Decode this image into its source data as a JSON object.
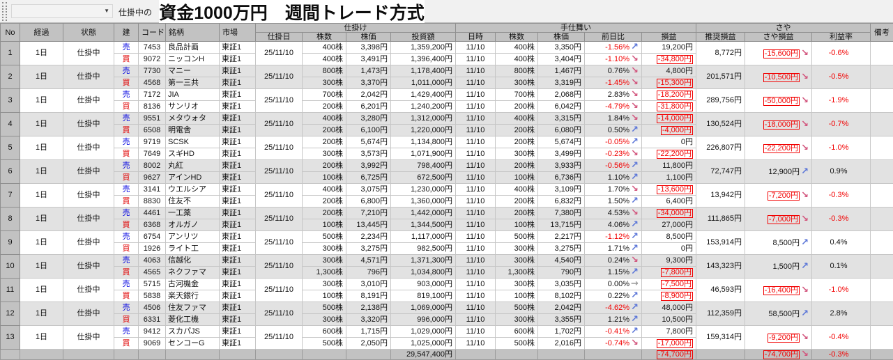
{
  "toolbar": {
    "dropdown_value": "",
    "filter_label": "仕掛中の",
    "title": "資金1000万円　週間トレード方式"
  },
  "colors": {
    "negative": "#f20000",
    "sell_blue": "#0000e0",
    "buy_red": "#e00000",
    "arrow_up": "#5b76d8",
    "arrow_down": "#d2557d",
    "arrow_flat": "#9a9a9a",
    "header_gray": "#c2c2c2",
    "row_even": "#e2e2e2"
  },
  "table": {
    "group_headers": {
      "entry": "仕掛け",
      "exit": "手仕舞い",
      "saya": "さや"
    },
    "col_headers": {
      "no": "No",
      "elapsed": "経過",
      "status": "状態",
      "side": "建",
      "code": "コード",
      "name": "銘柄",
      "market": "市場",
      "entry_date": "仕掛日",
      "shares": "株数",
      "price": "株価",
      "amount": "投資額",
      "exit_date": "日時",
      "exit_shares": "株数",
      "exit_price": "株価",
      "day_change": "前日比",
      "pnl": "損益",
      "rec_pnl": "推奨損益",
      "saya_pnl": "さや損益",
      "profit_rate": "利益率",
      "note": "備考"
    },
    "rows": [
      {
        "no": "1",
        "elapsed": "1日",
        "status": "仕掛中",
        "entry_date": "25/11/10",
        "legs": [
          {
            "side": "売",
            "code": "7453",
            "name": "良品計画",
            "market": "東証1",
            "shares": "400株",
            "price": "3,398円",
            "amount": "1,359,200円",
            "exit_date": "11/10",
            "exit_shares": "400株",
            "exit_price": "3,350円",
            "day_change": "-1.56%",
            "day_arrow": "up",
            "pnl": "19,200円"
          },
          {
            "side": "買",
            "code": "9072",
            "name": "ニッコンH",
            "market": "東証1",
            "shares": "400株",
            "price": "3,491円",
            "amount": "1,396,400円",
            "exit_date": "11/10",
            "exit_shares": "400株",
            "exit_price": "3,404円",
            "day_change": "-1.10%",
            "day_arrow": "down",
            "pnl": "-34,800円"
          }
        ],
        "rec_pnl": "8,772円",
        "saya_pnl": "-15,600円",
        "saya_arrow": "down",
        "profit_rate": "-0.6%",
        "note": ""
      },
      {
        "no": "2",
        "elapsed": "1日",
        "status": "仕掛中",
        "entry_date": "25/11/10",
        "legs": [
          {
            "side": "売",
            "code": "7730",
            "name": "マニー",
            "market": "東証1",
            "shares": "800株",
            "price": "1,473円",
            "amount": "1,178,400円",
            "exit_date": "11/10",
            "exit_shares": "800株",
            "exit_price": "1,467円",
            "day_change": "0.76%",
            "day_arrow": "down",
            "pnl": "4,800円"
          },
          {
            "side": "買",
            "code": "4568",
            "name": "第一三共",
            "market": "東証1",
            "shares": "300株",
            "price": "3,370円",
            "amount": "1,011,000円",
            "exit_date": "11/10",
            "exit_shares": "300株",
            "exit_price": "3,319円",
            "day_change": "-1.45%",
            "day_arrow": "down",
            "pnl": "-15,300円"
          }
        ],
        "rec_pnl": "201,571円",
        "saya_pnl": "-10,500円",
        "saya_arrow": "down",
        "profit_rate": "-0.5%",
        "note": ""
      },
      {
        "no": "3",
        "elapsed": "1日",
        "status": "仕掛中",
        "entry_date": "25/11/10",
        "legs": [
          {
            "side": "売",
            "code": "7172",
            "name": "JIA",
            "market": "東証1",
            "shares": "700株",
            "price": "2,042円",
            "amount": "1,429,400円",
            "exit_date": "11/10",
            "exit_shares": "700株",
            "exit_price": "2,068円",
            "day_change": "2.83%",
            "day_arrow": "down",
            "pnl": "-18,200円"
          },
          {
            "side": "買",
            "code": "8136",
            "name": "サンリオ",
            "market": "東証1",
            "shares": "200株",
            "price": "6,201円",
            "amount": "1,240,200円",
            "exit_date": "11/10",
            "exit_shares": "200株",
            "exit_price": "6,042円",
            "day_change": "-4.79%",
            "day_arrow": "down",
            "pnl": "-31,800円"
          }
        ],
        "rec_pnl": "289,756円",
        "saya_pnl": "-50,000円",
        "saya_arrow": "down",
        "profit_rate": "-1.9%",
        "note": ""
      },
      {
        "no": "4",
        "elapsed": "1日",
        "status": "仕掛中",
        "entry_date": "25/11/10",
        "legs": [
          {
            "side": "売",
            "code": "9551",
            "name": "メタウォタ",
            "market": "東証1",
            "shares": "400株",
            "price": "3,280円",
            "amount": "1,312,000円",
            "exit_date": "11/10",
            "exit_shares": "400株",
            "exit_price": "3,315円",
            "day_change": "1.84%",
            "day_arrow": "down",
            "pnl": "-14,000円"
          },
          {
            "side": "買",
            "code": "6508",
            "name": "明電舎",
            "market": "東証1",
            "shares": "200株",
            "price": "6,100円",
            "amount": "1,220,000円",
            "exit_date": "11/10",
            "exit_shares": "200株",
            "exit_price": "6,080円",
            "day_change": "0.50%",
            "day_arrow": "up",
            "pnl": "-4,000円"
          }
        ],
        "rec_pnl": "130,524円",
        "saya_pnl": "-18,000円",
        "saya_arrow": "down",
        "profit_rate": "-0.7%",
        "note": ""
      },
      {
        "no": "5",
        "elapsed": "1日",
        "status": "仕掛中",
        "entry_date": "25/11/10",
        "legs": [
          {
            "side": "売",
            "code": "9719",
            "name": "SCSK",
            "market": "東証1",
            "shares": "200株",
            "price": "5,674円",
            "amount": "1,134,800円",
            "exit_date": "11/10",
            "exit_shares": "200株",
            "exit_price": "5,674円",
            "day_change": "-0.05%",
            "day_arrow": "up",
            "pnl": "0円"
          },
          {
            "side": "買",
            "code": "7649",
            "name": "スギHD",
            "market": "東証1",
            "shares": "300株",
            "price": "3,573円",
            "amount": "1,071,900円",
            "exit_date": "11/10",
            "exit_shares": "300株",
            "exit_price": "3,499円",
            "day_change": "-0.23%",
            "day_arrow": "down",
            "pnl": "-22,200円"
          }
        ],
        "rec_pnl": "226,807円",
        "saya_pnl": "-22,200円",
        "saya_arrow": "down",
        "profit_rate": "-1.0%",
        "note": ""
      },
      {
        "no": "6",
        "elapsed": "1日",
        "status": "仕掛中",
        "entry_date": "25/11/10",
        "legs": [
          {
            "side": "売",
            "code": "8002",
            "name": "丸紅",
            "market": "東証1",
            "shares": "200株",
            "price": "3,992円",
            "amount": "798,400円",
            "exit_date": "11/10",
            "exit_shares": "200株",
            "exit_price": "3,933円",
            "day_change": "-0.56%",
            "day_arrow": "up",
            "pnl": "11,800円"
          },
          {
            "side": "買",
            "code": "9627",
            "name": "アインHD",
            "market": "東証1",
            "shares": "100株",
            "price": "6,725円",
            "amount": "672,500円",
            "exit_date": "11/10",
            "exit_shares": "100株",
            "exit_price": "6,736円",
            "day_change": "1.10%",
            "day_arrow": "up",
            "pnl": "1,100円"
          }
        ],
        "rec_pnl": "72,747円",
        "saya_pnl": "12,900円",
        "saya_arrow": "up",
        "profit_rate": "0.9%",
        "note": ""
      },
      {
        "no": "7",
        "elapsed": "1日",
        "status": "仕掛中",
        "entry_date": "25/11/10",
        "legs": [
          {
            "side": "売",
            "code": "3141",
            "name": "ウエルシア",
            "market": "東証1",
            "shares": "400株",
            "price": "3,075円",
            "amount": "1,230,000円",
            "exit_date": "11/10",
            "exit_shares": "400株",
            "exit_price": "3,109円",
            "day_change": "1.70%",
            "day_arrow": "down",
            "pnl": "-13,600円"
          },
          {
            "side": "買",
            "code": "8830",
            "name": "住友不",
            "market": "東証1",
            "shares": "200株",
            "price": "6,800円",
            "amount": "1,360,000円",
            "exit_date": "11/10",
            "exit_shares": "200株",
            "exit_price": "6,832円",
            "day_change": "1.50%",
            "day_arrow": "up",
            "pnl": "6,400円"
          }
        ],
        "rec_pnl": "13,942円",
        "saya_pnl": "-7,200円",
        "saya_arrow": "down",
        "profit_rate": "-0.3%",
        "note": ""
      },
      {
        "no": "8",
        "elapsed": "1日",
        "status": "仕掛中",
        "entry_date": "25/11/10",
        "legs": [
          {
            "side": "売",
            "code": "4461",
            "name": "一工薬",
            "market": "東証1",
            "shares": "200株",
            "price": "7,210円",
            "amount": "1,442,000円",
            "exit_date": "11/10",
            "exit_shares": "200株",
            "exit_price": "7,380円",
            "day_change": "4.53%",
            "day_arrow": "down",
            "pnl": "-34,000円"
          },
          {
            "side": "買",
            "code": "6368",
            "name": "オルガノ",
            "market": "東証1",
            "shares": "100株",
            "price": "13,445円",
            "amount": "1,344,500円",
            "exit_date": "11/10",
            "exit_shares": "100株",
            "exit_price": "13,715円",
            "day_change": "4.06%",
            "day_arrow": "up",
            "pnl": "27,000円"
          }
        ],
        "rec_pnl": "111,865円",
        "saya_pnl": "-7,000円",
        "saya_arrow": "down",
        "profit_rate": "-0.3%",
        "note": ""
      },
      {
        "no": "9",
        "elapsed": "1日",
        "status": "仕掛中",
        "entry_date": "25/11/10",
        "legs": [
          {
            "side": "売",
            "code": "6754",
            "name": "アンリツ",
            "market": "東証1",
            "shares": "500株",
            "price": "2,234円",
            "amount": "1,117,000円",
            "exit_date": "11/10",
            "exit_shares": "500株",
            "exit_price": "2,217円",
            "day_change": "-1.12%",
            "day_arrow": "up",
            "pnl": "8,500円"
          },
          {
            "side": "買",
            "code": "1926",
            "name": "ライト工",
            "market": "東証1",
            "shares": "300株",
            "price": "3,275円",
            "amount": "982,500円",
            "exit_date": "11/10",
            "exit_shares": "300株",
            "exit_price": "3,275円",
            "day_change": "1.71%",
            "day_arrow": "up",
            "pnl": "0円"
          }
        ],
        "rec_pnl": "153,914円",
        "saya_pnl": "8,500円",
        "saya_arrow": "up",
        "profit_rate": "0.4%",
        "note": ""
      },
      {
        "no": "10",
        "elapsed": "1日",
        "status": "仕掛中",
        "entry_date": "25/11/10",
        "legs": [
          {
            "side": "売",
            "code": "4063",
            "name": "信越化",
            "market": "東証1",
            "shares": "300株",
            "price": "4,571円",
            "amount": "1,371,300円",
            "exit_date": "11/10",
            "exit_shares": "300株",
            "exit_price": "4,540円",
            "day_change": "0.24%",
            "day_arrow": "down",
            "pnl": "9,300円"
          },
          {
            "side": "買",
            "code": "4565",
            "name": "ネクファマ",
            "market": "東証1",
            "shares": "1,300株",
            "price": "796円",
            "amount": "1,034,800円",
            "exit_date": "11/10",
            "exit_shares": "1,300株",
            "exit_price": "790円",
            "day_change": "1.15%",
            "day_arrow": "up",
            "pnl": "-7,800円"
          }
        ],
        "rec_pnl": "143,323円",
        "saya_pnl": "1,500円",
        "saya_arrow": "up",
        "profit_rate": "0.1%",
        "note": ""
      },
      {
        "no": "11",
        "elapsed": "1日",
        "status": "仕掛中",
        "entry_date": "25/11/10",
        "legs": [
          {
            "side": "売",
            "code": "5715",
            "name": "古河機金",
            "market": "東証1",
            "shares": "300株",
            "price": "3,010円",
            "amount": "903,000円",
            "exit_date": "11/10",
            "exit_shares": "300株",
            "exit_price": "3,035円",
            "day_change": "0.00%",
            "day_arrow": "flat",
            "pnl": "-7,500円"
          },
          {
            "side": "買",
            "code": "5838",
            "name": "楽天銀行",
            "market": "東証1",
            "shares": "100株",
            "price": "8,191円",
            "amount": "819,100円",
            "exit_date": "11/10",
            "exit_shares": "100株",
            "exit_price": "8,102円",
            "day_change": "0.22%",
            "day_arrow": "up",
            "pnl": "-8,900円"
          }
        ],
        "rec_pnl": "46,593円",
        "saya_pnl": "-16,400円",
        "saya_arrow": "down",
        "profit_rate": "-1.0%",
        "note": ""
      },
      {
        "no": "12",
        "elapsed": "1日",
        "status": "仕掛中",
        "entry_date": "25/11/10",
        "legs": [
          {
            "side": "売",
            "code": "4506",
            "name": "住友ファマ",
            "market": "東証1",
            "shares": "500株",
            "price": "2,138円",
            "amount": "1,069,000円",
            "exit_date": "11/10",
            "exit_shares": "500株",
            "exit_price": "2,042円",
            "day_change": "-4.62%",
            "day_arrow": "up",
            "pnl": "48,000円"
          },
          {
            "side": "買",
            "code": "6331",
            "name": "菱化工機",
            "market": "東証1",
            "shares": "300株",
            "price": "3,320円",
            "amount": "996,000円",
            "exit_date": "11/10",
            "exit_shares": "300株",
            "exit_price": "3,355円",
            "day_change": "1.21%",
            "day_arrow": "up",
            "pnl": "10,500円"
          }
        ],
        "rec_pnl": "112,359円",
        "saya_pnl": "58,500円",
        "saya_arrow": "up",
        "profit_rate": "2.8%",
        "note": ""
      },
      {
        "no": "13",
        "elapsed": "1日",
        "status": "仕掛中",
        "entry_date": "25/11/10",
        "legs": [
          {
            "side": "売",
            "code": "9412",
            "name": "スカパJS",
            "market": "東証1",
            "shares": "600株",
            "price": "1,715円",
            "amount": "1,029,000円",
            "exit_date": "11/10",
            "exit_shares": "600株",
            "exit_price": "1,702円",
            "day_change": "-0.41%",
            "day_arrow": "up",
            "pnl": "7,800円"
          },
          {
            "side": "買",
            "code": "9069",
            "name": "センコーG",
            "market": "東証1",
            "shares": "500株",
            "price": "2,050円",
            "amount": "1,025,000円",
            "exit_date": "11/10",
            "exit_shares": "500株",
            "exit_price": "2,016円",
            "day_change": "-0.74%",
            "day_arrow": "down",
            "pnl": "-17,000円"
          }
        ],
        "rec_pnl": "159,314円",
        "saya_pnl": "-9,200円",
        "saya_arrow": "down",
        "profit_rate": "-0.4%",
        "note": ""
      }
    ],
    "total": {
      "amount": "29,547,400円",
      "pnl": "-74,700円",
      "saya_pnl": "-74,700円",
      "saya_arrow": "down",
      "profit_rate": "-0.3%"
    }
  }
}
